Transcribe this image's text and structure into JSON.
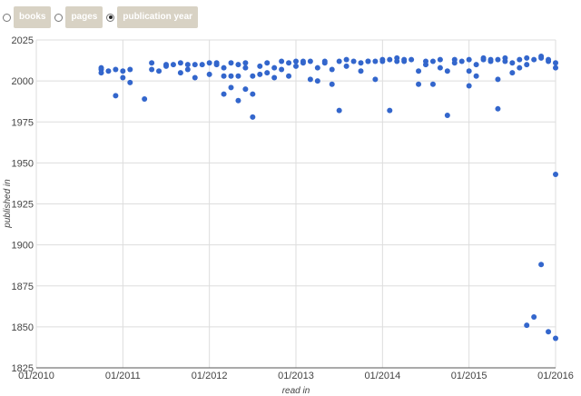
{
  "controls": {
    "options": [
      {
        "label": "books",
        "selected": false
      },
      {
        "label": "pages",
        "selected": false
      },
      {
        "label": "publication year",
        "selected": true
      }
    ]
  },
  "chart_data": {
    "type": "scatter",
    "xlabel": "read in",
    "ylabel": "published in",
    "x_ticks": [
      "01/2010",
      "01/2011",
      "01/2012",
      "01/2013",
      "01/2014",
      "01/2015",
      "01/2016"
    ],
    "y_ticks": [
      1825,
      1850,
      1875,
      1900,
      1925,
      1950,
      1975,
      2000,
      2025
    ],
    "xlim": [
      "2010-01",
      "2016-01"
    ],
    "ylim": [
      1825,
      2025
    ],
    "grid": true,
    "point_color": "#3366cc",
    "series": [
      {
        "points": [
          [
            "2010-10",
            2007
          ],
          [
            "2010-10",
            2008
          ],
          [
            "2010-10",
            2005
          ],
          [
            "2010-11",
            2006
          ],
          [
            "2010-12",
            2007
          ],
          [
            "2010-12",
            1991
          ],
          [
            "2011-01",
            2006
          ],
          [
            "2011-01",
            2002
          ],
          [
            "2011-02",
            2007
          ],
          [
            "2011-02",
            1999
          ],
          [
            "2011-04",
            1989
          ],
          [
            "2011-05",
            2011
          ],
          [
            "2011-05",
            2007
          ],
          [
            "2011-06",
            2006
          ],
          [
            "2011-07",
            2010
          ],
          [
            "2011-07",
            2009
          ],
          [
            "2011-08",
            2010
          ],
          [
            "2011-09",
            2005
          ],
          [
            "2011-09",
            2011
          ],
          [
            "2011-10",
            2007
          ],
          [
            "2011-10",
            2010
          ],
          [
            "2011-11",
            2002
          ],
          [
            "2011-11",
            2010
          ],
          [
            "2011-12",
            2010
          ],
          [
            "2012-01",
            2011
          ],
          [
            "2012-01",
            2004
          ],
          [
            "2012-02",
            2010
          ],
          [
            "2012-02",
            2011
          ],
          [
            "2012-03",
            2008
          ],
          [
            "2012-03",
            2003
          ],
          [
            "2012-03",
            1992
          ],
          [
            "2012-04",
            2011
          ],
          [
            "2012-04",
            1996
          ],
          [
            "2012-04",
            2003
          ],
          [
            "2012-05",
            2010
          ],
          [
            "2012-05",
            1988
          ],
          [
            "2012-05",
            2003
          ],
          [
            "2012-06",
            2011
          ],
          [
            "2012-06",
            2008
          ],
          [
            "2012-06",
            1995
          ],
          [
            "2012-07",
            1978
          ],
          [
            "2012-07",
            2003
          ],
          [
            "2012-07",
            1992
          ],
          [
            "2012-08",
            2009
          ],
          [
            "2012-08",
            2004
          ],
          [
            "2012-09",
            2011
          ],
          [
            "2012-09",
            2005
          ],
          [
            "2012-10",
            2002
          ],
          [
            "2012-10",
            2008
          ],
          [
            "2012-11",
            2012
          ],
          [
            "2012-11",
            2007
          ],
          [
            "2012-12",
            2011
          ],
          [
            "2012-12",
            2003
          ],
          [
            "2013-01",
            2012
          ],
          [
            "2013-01",
            2009
          ],
          [
            "2013-02",
            2011
          ],
          [
            "2013-02",
            2012
          ],
          [
            "2013-03",
            2001
          ],
          [
            "2013-03",
            2012
          ],
          [
            "2013-04",
            2008
          ],
          [
            "2013-04",
            2000
          ],
          [
            "2013-05",
            2011
          ],
          [
            "2013-05",
            2012
          ],
          [
            "2013-06",
            2007
          ],
          [
            "2013-06",
            1998
          ],
          [
            "2013-07",
            2012
          ],
          [
            "2013-07",
            1982
          ],
          [
            "2013-08",
            2013
          ],
          [
            "2013-08",
            2009
          ],
          [
            "2013-09",
            2012
          ],
          [
            "2013-10",
            2011
          ],
          [
            "2013-10",
            2006
          ],
          [
            "2013-11",
            2012
          ],
          [
            "2013-11",
            2012
          ],
          [
            "2013-12",
            2012
          ],
          [
            "2013-12",
            2001
          ],
          [
            "2014-01",
            2013
          ],
          [
            "2014-01",
            2012
          ],
          [
            "2014-02",
            2013
          ],
          [
            "2014-02",
            1982
          ],
          [
            "2014-03",
            2012
          ],
          [
            "2014-03",
            2014
          ],
          [
            "2014-04",
            2013
          ],
          [
            "2014-04",
            2012
          ],
          [
            "2014-05",
            2013
          ],
          [
            "2014-06",
            2006
          ],
          [
            "2014-06",
            1998
          ],
          [
            "2014-07",
            2012
          ],
          [
            "2014-07",
            2010
          ],
          [
            "2014-08",
            1998
          ],
          [
            "2014-08",
            2012
          ],
          [
            "2014-09",
            2013
          ],
          [
            "2014-09",
            2008
          ],
          [
            "2014-10",
            2006
          ],
          [
            "2014-10",
            1979
          ],
          [
            "2014-11",
            2013
          ],
          [
            "2014-11",
            2011
          ],
          [
            "2014-12",
            2012
          ],
          [
            "2015-01",
            2013
          ],
          [
            "2015-01",
            2006
          ],
          [
            "2015-01",
            1997
          ],
          [
            "2015-02",
            2010
          ],
          [
            "2015-02",
            2003
          ],
          [
            "2015-03",
            2013
          ],
          [
            "2015-03",
            2014
          ],
          [
            "2015-04",
            2012
          ],
          [
            "2015-04",
            2013
          ],
          [
            "2015-05",
            2013
          ],
          [
            "2015-05",
            2001
          ],
          [
            "2015-05",
            1983
          ],
          [
            "2015-06",
            2012
          ],
          [
            "2015-06",
            2014
          ],
          [
            "2015-07",
            2005
          ],
          [
            "2015-07",
            2011
          ],
          [
            "2015-08",
            2013
          ],
          [
            "2015-08",
            2008
          ],
          [
            "2015-09",
            2014
          ],
          [
            "2015-09",
            2010
          ],
          [
            "2015-09",
            1851
          ],
          [
            "2015-10",
            1856
          ],
          [
            "2015-10",
            2013
          ],
          [
            "2015-11",
            2015
          ],
          [
            "2015-11",
            1888
          ],
          [
            "2015-11",
            2014
          ],
          [
            "2015-12",
            1847
          ],
          [
            "2015-12",
            2013
          ],
          [
            "2015-12",
            2012
          ],
          [
            "2016-01",
            1943
          ],
          [
            "2016-01",
            2008
          ],
          [
            "2016-01",
            2011
          ],
          [
            "2016-01",
            1843
          ]
        ]
      }
    ]
  }
}
